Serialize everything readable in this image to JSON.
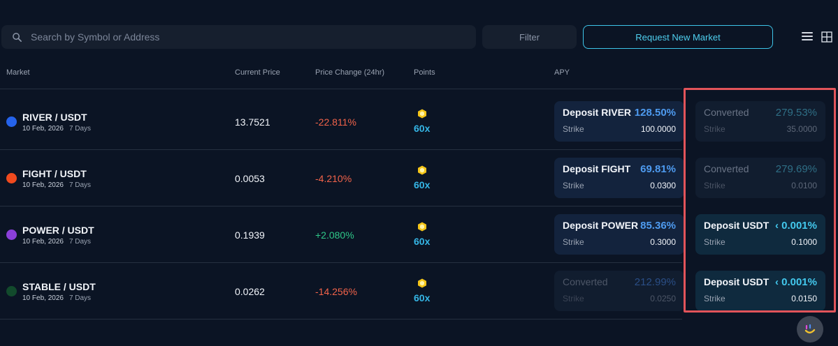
{
  "search": {
    "placeholder": "Search by Symbol or Address",
    "icon": "search-icon"
  },
  "toolbar": {
    "filter_label": "Filter",
    "request_label": "Request New Market",
    "accent": "#3ec6ea"
  },
  "table": {
    "headers": {
      "market": "Market",
      "price": "Current Price",
      "change": "Price Change (24hr)",
      "points": "Points",
      "apy": "APY"
    },
    "rows": [
      {
        "pair": "RIVER / USDT",
        "date": "10 Feb, 2026",
        "days": "7 Days",
        "icon_color": "#2563eb",
        "price": "13.7521",
        "change": "-22.811%",
        "change_dir": "neg",
        "points": "60x",
        "card1": {
          "title": "Deposit RIVER",
          "apy": "128.50%",
          "strike_label": "Strike",
          "strike": "100.0000",
          "state": "active"
        },
        "card2": {
          "title": "Converted",
          "apy": "279.53%",
          "strike_label": "Strike",
          "strike": "35.0000",
          "state": "dim"
        }
      },
      {
        "pair": "FIGHT / USDT",
        "date": "10 Feb, 2026",
        "days": "7 Days",
        "icon_color": "#f04a1e",
        "price": "0.0053",
        "change": "-4.210%",
        "change_dir": "neg",
        "points": "60x",
        "card1": {
          "title": "Deposit FIGHT",
          "apy": "69.81%",
          "strike_label": "Strike",
          "strike": "0.0300",
          "state": "active"
        },
        "card2": {
          "title": "Converted",
          "apy": "279.69%",
          "strike_label": "Strike",
          "strike": "0.0100",
          "state": "dim"
        }
      },
      {
        "pair": "POWER / USDT",
        "date": "10 Feb, 2026",
        "days": "7 Days",
        "icon_color": "#8b3fd9",
        "price": "0.1939",
        "change": "+2.080%",
        "change_dir": "pos",
        "points": "60x",
        "card1": {
          "title": "Deposit POWER",
          "apy": "85.36%",
          "strike_label": "Strike",
          "strike": "0.3000",
          "state": "active"
        },
        "card2": {
          "title": "Deposit USDT",
          "apy": "‹ 0.001%",
          "strike_label": "Strike",
          "strike": "0.1000",
          "state": "usdt"
        }
      },
      {
        "pair": "STABLE / USDT",
        "date": "10 Feb, 2026",
        "days": "7 Days",
        "icon_color": "#124a2c",
        "price": "0.0262",
        "change": "-14.256%",
        "change_dir": "neg",
        "points": "60x",
        "card1": {
          "title": "Converted",
          "apy": "212.99%",
          "strike_label": "Strike",
          "strike": "0.0250",
          "state": "dim2"
        },
        "card2": {
          "title": "Deposit USDT",
          "apy": "‹ 0.001%",
          "strike_label": "Strike",
          "strike": "0.0150",
          "state": "usdt"
        }
      }
    ]
  },
  "colors": {
    "background": "#0b1424",
    "negative": "#f2634a",
    "positive": "#2fc889",
    "points": "#35b6e6",
    "highlight": "#e2545a"
  }
}
